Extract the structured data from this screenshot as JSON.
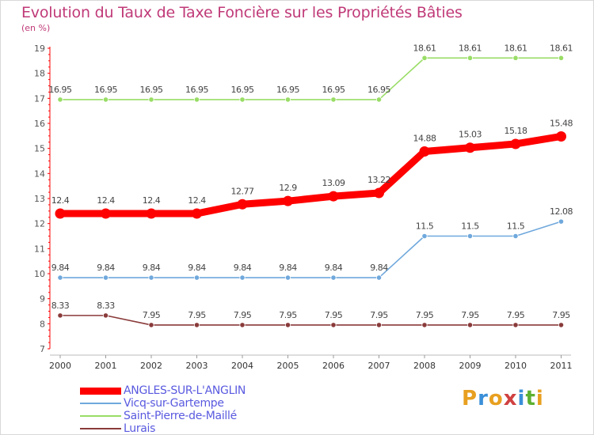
{
  "header": {
    "title": "Evolution du Taux de Taxe Foncière sur les Propriétés Bâties",
    "unit": "(en %)"
  },
  "brand": {
    "text": "Proxiti",
    "letter_colors": [
      "#e8a020",
      "#3a8fd8",
      "#e8a020",
      "#d04040",
      "#3a8fd8",
      "#5cb030",
      "#e8a020"
    ]
  },
  "chart_data": {
    "type": "line",
    "title": "Evolution du Taux de Taxe Foncière sur les Propriétés Bâties",
    "ylabel": "(en %)",
    "xlabel": "",
    "x": [
      "2000",
      "2001",
      "2002",
      "2003",
      "2004",
      "2005",
      "2006",
      "2007",
      "2008",
      "2009",
      "2010",
      "2011"
    ],
    "ylim": [
      7,
      19
    ],
    "yticks": [
      "7",
      "8",
      "9",
      "10",
      "11",
      "12",
      "13",
      "14",
      "15",
      "16",
      "17",
      "18",
      "19"
    ],
    "grid": false,
    "legend": "bottom-left",
    "series": [
      {
        "name": "ANGLES-SUR-L'ANGLIN",
        "color": "#ff0000",
        "values": [
          12.4,
          12.4,
          12.4,
          12.4,
          12.77,
          12.9,
          13.09,
          13.22,
          14.88,
          15.03,
          15.18,
          15.48
        ],
        "labels": [
          "12.4",
          "12.4",
          "12.4",
          "12.4",
          "12.77",
          "12.9",
          "13.09",
          "13.22",
          "14.88",
          "15.03",
          "15.18",
          "15.48"
        ]
      },
      {
        "name": "Vicq-sur-Gartempe",
        "color": "#6fa8dc",
        "values": [
          9.84,
          9.84,
          9.84,
          9.84,
          9.84,
          9.84,
          9.84,
          9.84,
          11.5,
          11.5,
          11.5,
          12.08
        ],
        "labels": [
          "9.84",
          "9.84",
          "9.84",
          "9.84",
          "9.84",
          "9.84",
          "9.84",
          "9.84",
          "11.5",
          "11.5",
          "11.5",
          "12.08"
        ]
      },
      {
        "name": "Saint-Pierre-de-Maillé",
        "color": "#99dd66",
        "values": [
          16.95,
          16.95,
          16.95,
          16.95,
          16.95,
          16.95,
          16.95,
          16.95,
          18.61,
          18.61,
          18.61,
          18.61
        ],
        "labels": [
          "16.95",
          "16.95",
          "16.95",
          "16.95",
          "16.95",
          "16.95",
          "16.95",
          "16.95",
          "18.61",
          "18.61",
          "18.61",
          "18.61"
        ]
      },
      {
        "name": "Lurais",
        "color": "#8a3a3a",
        "values": [
          8.33,
          8.33,
          7.95,
          7.95,
          7.95,
          7.95,
          7.95,
          7.95,
          7.95,
          7.95,
          7.95,
          7.95
        ],
        "labels": [
          "8.33",
          "8.33",
          "7.95",
          "7.95",
          "7.95",
          "7.95",
          "7.95",
          "7.95",
          "7.95",
          "7.95",
          "7.95",
          "7.95"
        ]
      }
    ]
  }
}
